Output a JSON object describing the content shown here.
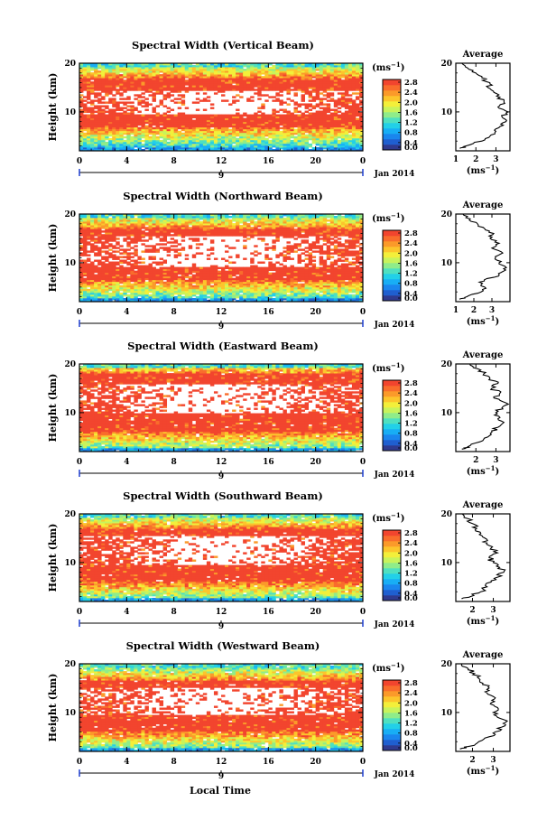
{
  "figure": {
    "xlabel": "Local Time",
    "date_label": "Jan 2014",
    "colorbar_unit": "(ms",
    "colorbar_unit_exp": "−1",
    "colorbar_ticks": [
      "2.8",
      "2.4",
      "2.0",
      "1.6",
      "1.2",
      "0.8",
      "0.4",
      "0.0"
    ],
    "colormap": [
      "#2f3a8f",
      "#1f5fd0",
      "#1a86ee",
      "#18aef5",
      "#22d0e8",
      "#4fe0c0",
      "#8fec8a",
      "#c8f35c",
      "#f3ef3a",
      "#fcc52c",
      "#fb9a2a",
      "#f96d2c",
      "#f2452e"
    ],
    "white_color": "#ffffff",
    "average_title": "Average"
  },
  "chart_data": [
    {
      "type": "heatmap",
      "title": "Spectral Width (Vertical Beam)",
      "ylabel": "Height (km)",
      "x_ticks": [
        "0",
        "4",
        "8",
        "12",
        "16",
        "20",
        "0"
      ],
      "x_day_label": "9",
      "y_ticks": [
        "20",
        "10"
      ],
      "xlim": [
        0,
        24
      ],
      "ylim": [
        2,
        20
      ],
      "colorbar_range": [
        0.0,
        2.8
      ],
      "red_band": [
        7.0,
        17.0
      ],
      "white_band": [
        9.5,
        14.5
      ],
      "profile": {
        "title": "Average",
        "x_ticks": [
          "1",
          "2",
          "3"
        ],
        "xlim": [
          1,
          3.7
        ],
        "y_ticks": [
          "20",
          "10"
        ],
        "xlabel": "(ms",
        "xlabel_exp": "−1",
        "heights": [
          2.5,
          3,
          4,
          5,
          6,
          7,
          8,
          9,
          10,
          11,
          12,
          13,
          14,
          15,
          16,
          17,
          18,
          19,
          20
        ],
        "values": [
          1.2,
          1.5,
          2.3,
          2.7,
          3.0,
          3.2,
          3.5,
          3.3,
          3.6,
          3.1,
          3.4,
          3.2,
          2.9,
          2.6,
          2.7,
          2.3,
          2.0,
          1.6,
          1.3
        ]
      }
    },
    {
      "type": "heatmap",
      "title": "Spectral Width (Northward Beam)",
      "ylabel": "Height (km)",
      "x_ticks": [
        "0",
        "4",
        "8",
        "12",
        "16",
        "20",
        "0"
      ],
      "x_day_label": "9",
      "y_ticks": [
        "20",
        "10"
      ],
      "xlim": [
        0,
        24
      ],
      "ylim": [
        2,
        20
      ],
      "colorbar_range": [
        0.0,
        2.8
      ],
      "red_band": [
        6.5,
        17.0
      ],
      "white_band": [
        9.0,
        15.5
      ],
      "profile": {
        "title": "Average",
        "x_ticks": [
          "1",
          "2",
          "3"
        ],
        "xlim": [
          1,
          4
        ],
        "y_ticks": [
          "20",
          "10"
        ],
        "xlabel": "(ms",
        "xlabel_exp": "−1",
        "heights": [
          2.5,
          3,
          4,
          5,
          6,
          7,
          8,
          9,
          10,
          11,
          12,
          13,
          14,
          15,
          16,
          17,
          18,
          19,
          20
        ],
        "values": [
          1.2,
          1.6,
          2.4,
          2.6,
          2.3,
          3.1,
          3.5,
          3.8,
          3.4,
          3.2,
          3.6,
          3.0,
          3.4,
          2.9,
          3.1,
          2.6,
          2.2,
          1.8,
          1.4
        ]
      }
    },
    {
      "type": "heatmap",
      "title": "Spectral Width (Eastward Beam)",
      "ylabel": "Height (km)",
      "x_ticks": [
        "0",
        "4",
        "8",
        "12",
        "16",
        "20",
        "0"
      ],
      "x_day_label": "9",
      "y_ticks": [
        "20",
        "10"
      ],
      "xlim": [
        0,
        24
      ],
      "ylim": [
        2,
        20
      ],
      "colorbar_range": [
        0.0,
        2.8
      ],
      "red_band": [
        6.0,
        18.0
      ],
      "white_band": [
        10.0,
        16.0
      ],
      "profile": {
        "title": "Average",
        "x_ticks": [
          "2",
          "3"
        ],
        "xlim": [
          1,
          3.7
        ],
        "y_ticks": [
          "20",
          "10"
        ],
        "xlabel": "(ms",
        "xlabel_exp": "−1",
        "heights": [
          2.5,
          3,
          4,
          5,
          6,
          7,
          8,
          9,
          10,
          11,
          12,
          13,
          14,
          15,
          16,
          17,
          18,
          19,
          20
        ],
        "values": [
          1.3,
          1.6,
          2.2,
          2.6,
          2.8,
          3.1,
          3.4,
          3.2,
          3.0,
          3.3,
          3.5,
          2.9,
          3.2,
          2.8,
          3.1,
          2.7,
          2.4,
          2.1,
          1.7
        ]
      }
    },
    {
      "type": "heatmap",
      "title": "Spectral Width (Southward Beam)",
      "ylabel": "Height (km)",
      "x_ticks": [
        "0",
        "4",
        "8",
        "12",
        "16",
        "20",
        "0"
      ],
      "x_day_label": "9",
      "y_ticks": [
        "20",
        "10"
      ],
      "xlim": [
        0,
        24
      ],
      "ylim": [
        2,
        20
      ],
      "colorbar_range": [
        0.0,
        2.8
      ],
      "red_band": [
        6.0,
        17.0
      ],
      "white_band": [
        9.5,
        15.5
      ],
      "profile": {
        "title": "Average",
        "x_ticks": [
          "2",
          "3"
        ],
        "xlim": [
          1.2,
          3.8
        ],
        "y_ticks": [
          "20",
          "10"
        ],
        "xlabel": "(ms",
        "xlabel_exp": "−1",
        "heights": [
          2.5,
          3,
          4,
          5,
          6,
          7,
          8,
          9,
          10,
          11,
          12,
          13,
          14,
          15,
          16,
          17,
          18,
          19,
          20
        ],
        "values": [
          1.5,
          1.9,
          2.4,
          2.7,
          2.9,
          3.2,
          3.5,
          3.3,
          3.0,
          2.8,
          3.2,
          2.9,
          2.7,
          2.6,
          2.4,
          2.2,
          2.0,
          1.8,
          1.5
        ]
      }
    },
    {
      "type": "heatmap",
      "title": "Spectral Width (Westward Beam)",
      "ylabel": "Height (km)",
      "x_ticks": [
        "0",
        "4",
        "8",
        "12",
        "16",
        "20",
        "0"
      ],
      "x_day_label": "9",
      "y_ticks": [
        "20",
        "10"
      ],
      "xlim": [
        0,
        24
      ],
      "ylim": [
        2,
        20
      ],
      "colorbar_range": [
        0.0,
        2.8
      ],
      "red_band": [
        6.0,
        16.5
      ],
      "white_band": [
        9.5,
        15.0
      ],
      "profile": {
        "title": "Average",
        "x_ticks": [
          "2",
          "3"
        ],
        "xlim": [
          1.2,
          3.8
        ],
        "y_ticks": [
          "20",
          "10"
        ],
        "xlabel": "(ms",
        "xlabel_exp": "−1",
        "heights": [
          2.5,
          3,
          4,
          5,
          6,
          7,
          8,
          9,
          10,
          11,
          12,
          13,
          14,
          15,
          16,
          17,
          18,
          19,
          20
        ],
        "values": [
          1.4,
          1.8,
          2.3,
          2.8,
          3.1,
          3.4,
          3.6,
          3.2,
          3.0,
          3.2,
          2.9,
          3.1,
          2.7,
          2.8,
          2.5,
          2.3,
          2.1,
          1.8,
          1.5
        ]
      }
    }
  ]
}
